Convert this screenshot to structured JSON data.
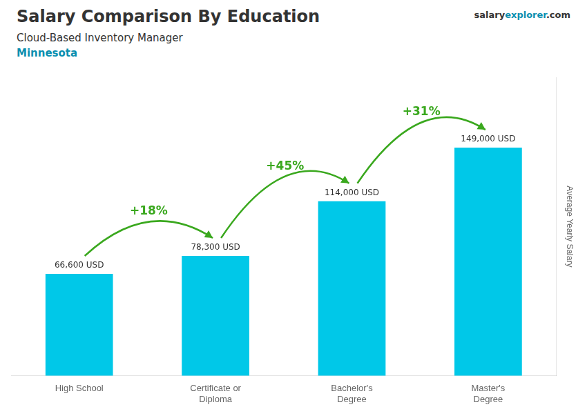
{
  "chart_data": {
    "type": "bar",
    "title": "Salary Comparison By Education",
    "subtitle": "Cloud-Based Inventory Manager",
    "location": "Minnesota",
    "watermark": [
      "salary",
      "explorer",
      ".com"
    ],
    "ylabel": "Average Yearly Salary",
    "categories": [
      "High School",
      "Certificate or\nDiploma",
      "Bachelor's\nDegree",
      "Master's\nDegree"
    ],
    "values": [
      66600,
      78300,
      114000,
      149000
    ],
    "value_labels": [
      "66,600 USD",
      "78,300 USD",
      "114,000 USD",
      "149,000 USD"
    ],
    "data_labels": true,
    "annotations": [
      "+18%",
      "+45%",
      "+31%"
    ],
    "color": "#00c8e8",
    "ylim": [
      0,
      195000
    ],
    "yticks": [],
    "grid": false,
    "tick_labels": "x"
  }
}
